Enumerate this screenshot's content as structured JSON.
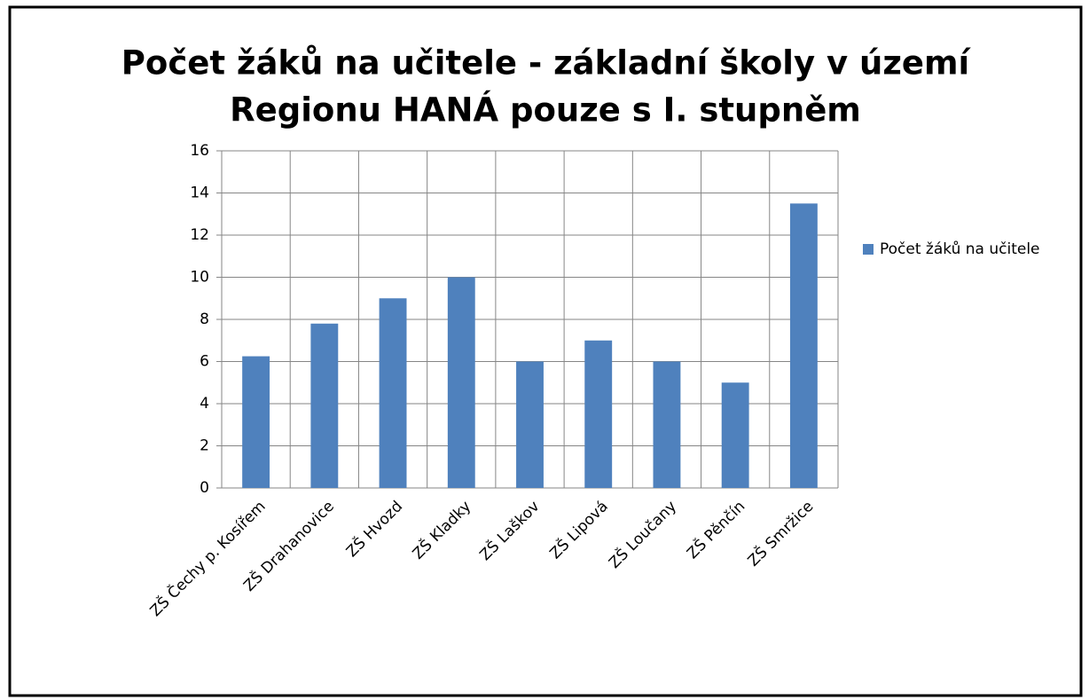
{
  "chart_data": {
    "type": "bar",
    "title": [
      "Počet žáků na učitele - základní školy v území",
      "Regionu HANÁ pouze s I. stupněm"
    ],
    "categories": [
      "ZŠ Čechy p. Kosířem",
      "ZŠ Drahanovice",
      "ZŠ Hvozd",
      "ZŠ Kladky",
      "ZŠ Laškov",
      "ZŠ Lipová",
      "ZŠ Loučany",
      "ZŠ Pěnčín",
      "ZŠ Smržice"
    ],
    "series": [
      {
        "name": "Počet žáků na učitele",
        "color": "#4f81bd",
        "values": [
          6.25,
          7.8,
          9,
          10,
          6,
          7,
          6,
          5,
          13.5
        ]
      }
    ],
    "ylim": [
      0,
      16
    ],
    "yticks": [
      0,
      2,
      4,
      6,
      8,
      10,
      12,
      14,
      16
    ],
    "grid": true,
    "legend": "right"
  }
}
